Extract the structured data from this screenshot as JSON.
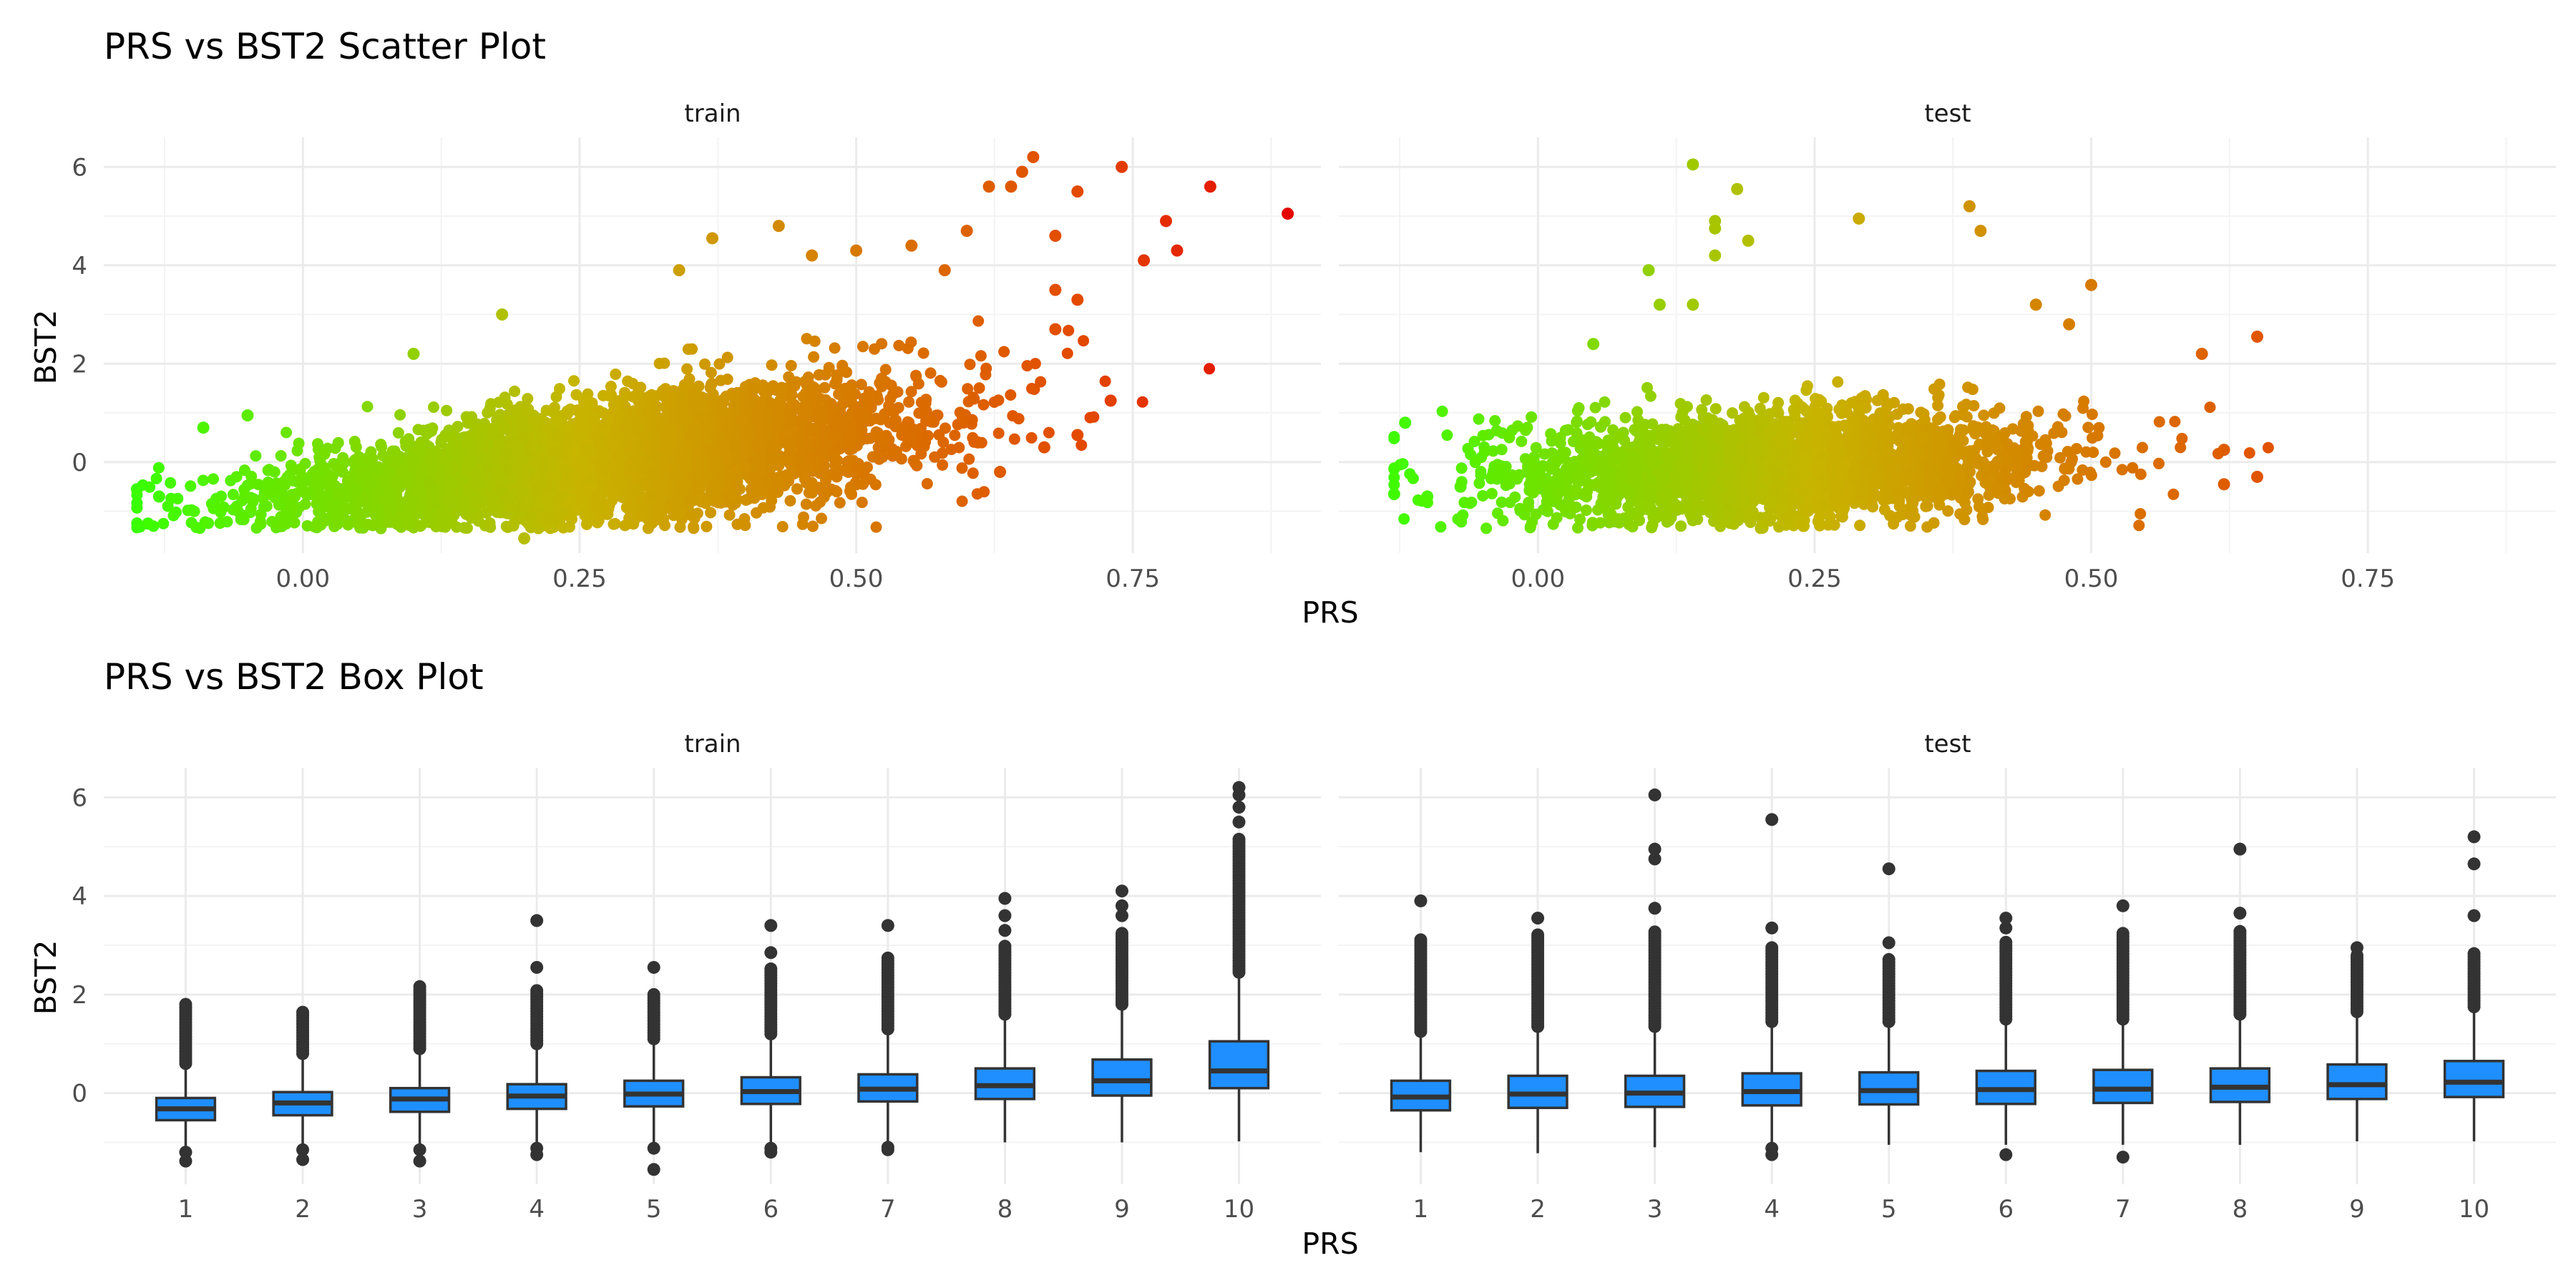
{
  "colors": {
    "low": "#39ff00",
    "mid": "#c8b400",
    "high": "#e34a00",
    "max": "#e50000",
    "box_fill": "#1f8fff",
    "box_line": "#333333",
    "grid": "#ebebeb"
  },
  "chart_data": [
    {
      "type": "scatter",
      "title": "PRS vs BST2 Scatter Plot",
      "xlabel": "PRS",
      "ylabel": "BST2",
      "xlim": [
        -0.18,
        0.92
      ],
      "ylim": [
        -1.85,
        6.6
      ],
      "x_ticks": [
        "0.00",
        "0.25",
        "0.50",
        "0.75"
      ],
      "x_tick_values": [
        0,
        0.25,
        0.5,
        0.75
      ],
      "y_ticks": [
        "0",
        "2",
        "4",
        "6"
      ],
      "y_tick_values": [
        0,
        2,
        4,
        6
      ],
      "color_by": "PRS",
      "grid": true,
      "facets": [
        {
          "name": "train",
          "trend": {
            "intercept": -0.65,
            "slope": 2.6
          },
          "x_range": [
            -0.15,
            0.9
          ],
          "notable_points": [
            {
              "x": 0.89,
              "y": 5.05
            },
            {
              "x": 0.82,
              "y": 5.6
            },
            {
              "x": 0.79,
              "y": 4.3
            },
            {
              "x": 0.78,
              "y": 4.9
            },
            {
              "x": 0.76,
              "y": 4.1
            },
            {
              "x": 0.74,
              "y": 6.0
            },
            {
              "x": 0.7,
              "y": 3.3
            },
            {
              "x": 0.73,
              "y": 1.25
            },
            {
              "x": 0.7,
              "y": 0.55
            },
            {
              "x": 0.66,
              "y": 6.2
            },
            {
              "x": 0.64,
              "y": 5.6
            },
            {
              "x": 0.65,
              "y": 5.9
            },
            {
              "x": 0.68,
              "y": 4.6
            },
            {
              "x": 0.7,
              "y": 5.5
            },
            {
              "x": 0.68,
              "y": 2.7
            },
            {
              "x": 0.68,
              "y": 3.5
            },
            {
              "x": 0.6,
              "y": 4.7
            },
            {
              "x": 0.62,
              "y": 5.6
            },
            {
              "x": 0.58,
              "y": 3.9
            },
            {
              "x": 0.55,
              "y": 4.4
            },
            {
              "x": 0.5,
              "y": 4.3
            },
            {
              "x": 0.46,
              "y": 4.2
            },
            {
              "x": 0.43,
              "y": 4.8
            },
            {
              "x": 0.37,
              "y": 4.55
            },
            {
              "x": 0.34,
              "y": 3.9
            },
            {
              "x": 0.63,
              "y": -0.2
            },
            {
              "x": 0.61,
              "y": 0.4
            },
            {
              "x": 0.67,
              "y": 0.3
            },
            {
              "x": 0.2,
              "y": -1.55
            },
            {
              "x": -0.15,
              "y": -0.55
            },
            {
              "x": -0.14,
              "y": -1.25
            },
            {
              "x": -0.13,
              "y": -0.7
            },
            {
              "x": -0.09,
              "y": 0.7
            },
            {
              "x": -0.05,
              "y": 0.95
            },
            {
              "x": 0.1,
              "y": 2.2
            },
            {
              "x": 0.18,
              "y": 3.0
            }
          ]
        },
        {
          "name": "test",
          "trend": {
            "intercept": -0.55,
            "slope": 2.0
          },
          "x_range": [
            -0.13,
            0.66
          ],
          "notable_points": [
            {
              "x": 0.14,
              "y": 6.05
            },
            {
              "x": 0.18,
              "y": 5.55
            },
            {
              "x": 0.16,
              "y": 4.9
            },
            {
              "x": 0.16,
              "y": 4.75
            },
            {
              "x": 0.16,
              "y": 4.2
            },
            {
              "x": 0.39,
              "y": 5.2
            },
            {
              "x": 0.4,
              "y": 4.7
            },
            {
              "x": 0.29,
              "y": 4.95
            },
            {
              "x": 0.19,
              "y": 4.5
            },
            {
              "x": 0.1,
              "y": 3.9
            },
            {
              "x": 0.05,
              "y": 2.4
            },
            {
              "x": 0.11,
              "y": 3.2
            },
            {
              "x": 0.14,
              "y": 3.2
            },
            {
              "x": 0.5,
              "y": 3.6
            },
            {
              "x": 0.45,
              "y": 3.2
            },
            {
              "x": 0.48,
              "y": 2.8
            },
            {
              "x": 0.65,
              "y": 2.55
            },
            {
              "x": 0.6,
              "y": 2.2
            },
            {
              "x": 0.65,
              "y": -0.3
            },
            {
              "x": 0.62,
              "y": -0.45
            },
            {
              "x": 0.62,
              "y": 0.25
            },
            {
              "x": -0.12,
              "y": 0.8
            },
            {
              "x": -0.13,
              "y": -0.65
            },
            {
              "x": -0.1,
              "y": -0.7
            },
            {
              "x": -0.07,
              "y": -0.5
            },
            {
              "x": 0.24,
              "y": -1.3
            },
            {
              "x": 0.17,
              "y": -1.2
            }
          ]
        }
      ]
    },
    {
      "type": "box",
      "title": "PRS vs BST2 Box Plot",
      "xlabel": "PRS",
      "ylabel": "BST2",
      "categories": [
        "1",
        "2",
        "3",
        "4",
        "5",
        "6",
        "7",
        "8",
        "9",
        "10"
      ],
      "ylim": [
        -1.85,
        6.6
      ],
      "y_ticks": [
        "0",
        "2",
        "4",
        "6"
      ],
      "y_tick_values": [
        0,
        2,
        4,
        6
      ],
      "grid": true,
      "facets": [
        {
          "name": "train",
          "boxes": [
            {
              "q1": -0.55,
              "median": -0.32,
              "q3": -0.1,
              "whisker_low": -1.08,
              "whisker_high": 0.55,
              "outliers_high": [
                0.6,
                1.85
              ],
              "outliers_low": [
                -1.2,
                -1.38
              ]
            },
            {
              "q1": -0.45,
              "median": -0.2,
              "q3": 0.02,
              "whisker_low": -1.08,
              "whisker_high": 0.72,
              "outliers_high": [
                0.8,
                1.65
              ],
              "outliers_low": [
                -1.15,
                -1.35
              ]
            },
            {
              "q1": -0.38,
              "median": -0.12,
              "q3": 0.1,
              "whisker_low": -1.1,
              "whisker_high": 0.82,
              "outliers_high": [
                0.9,
                2.2
              ],
              "outliers_low": [
                -1.15,
                -1.38
              ]
            },
            {
              "q1": -0.32,
              "median": -0.06,
              "q3": 0.18,
              "whisker_low": -1.08,
              "whisker_high": 0.92,
              "outliers_high": [
                1.0,
                2.1
              ],
              "extra_outliers": [
                2.55,
                3.5
              ],
              "outliers_low": [
                -1.12,
                -1.25
              ]
            },
            {
              "q1": -0.27,
              "median": -0.02,
              "q3": 0.25,
              "whisker_low": -1.05,
              "whisker_high": 1.0,
              "outliers_high": [
                1.1,
                2.05
              ],
              "extra_outliers": [
                2.55
              ],
              "outliers_low": [
                -1.12,
                -1.55
              ]
            },
            {
              "q1": -0.22,
              "median": 0.03,
              "q3": 0.32,
              "whisker_low": -1.05,
              "whisker_high": 1.12,
              "outliers_high": [
                1.2,
                2.55
              ],
              "extra_outliers": [
                2.85,
                3.4
              ],
              "outliers_low": [
                -1.12,
                -1.2
              ]
            },
            {
              "q1": -0.17,
              "median": 0.08,
              "q3": 0.38,
              "whisker_low": -1.05,
              "whisker_high": 1.2,
              "outliers_high": [
                1.3,
                2.75
              ],
              "extra_outliers": [
                3.4
              ],
              "outliers_low": [
                -1.1,
                -1.15
              ]
            },
            {
              "q1": -0.12,
              "median": 0.15,
              "q3": 0.5,
              "whisker_low": -1.0,
              "whisker_high": 1.5,
              "outliers_high": [
                1.6,
                3.0
              ],
              "extra_outliers": [
                3.3,
                3.6,
                3.95
              ],
              "outliers_low": []
            },
            {
              "q1": -0.05,
              "median": 0.25,
              "q3": 0.68,
              "whisker_low": -1.0,
              "whisker_high": 1.75,
              "outliers_high": [
                1.8,
                3.3
              ],
              "extra_outliers": [
                3.6,
                3.8,
                4.1
              ],
              "outliers_low": []
            },
            {
              "q1": 0.1,
              "median": 0.45,
              "q3": 1.05,
              "whisker_low": -0.98,
              "whisker_high": 2.4,
              "outliers_high": [
                2.45,
                5.2
              ],
              "extra_outliers": [
                5.5,
                5.8,
                6.05,
                6.2
              ],
              "outliers_low": []
            }
          ]
        },
        {
          "name": "test",
          "boxes": [
            {
              "q1": -0.35,
              "median": -0.08,
              "q3": 0.25,
              "whisker_low": -1.2,
              "whisker_high": 1.2,
              "outliers_high": [
                1.25,
                3.15
              ],
              "extra_outliers": [
                3.9
              ],
              "outliers_low": []
            },
            {
              "q1": -0.3,
              "median": -0.02,
              "q3": 0.35,
              "whisker_low": -1.22,
              "whisker_high": 1.3,
              "outliers_high": [
                1.35,
                3.25
              ],
              "extra_outliers": [
                3.55
              ],
              "outliers_low": []
            },
            {
              "q1": -0.28,
              "median": 0.0,
              "q3": 0.35,
              "whisker_low": -1.1,
              "whisker_high": 1.3,
              "outliers_high": [
                1.35,
                3.3
              ],
              "extra_outliers": [
                3.75,
                4.75,
                4.95,
                6.05
              ],
              "outliers_low": []
            },
            {
              "q1": -0.25,
              "median": 0.03,
              "q3": 0.4,
              "whisker_low": -1.05,
              "whisker_high": 1.4,
              "outliers_high": [
                1.45,
                3.0
              ],
              "extra_outliers": [
                3.35,
                5.55
              ],
              "outliers_low": [
                -1.12,
                -1.25
              ]
            },
            {
              "q1": -0.23,
              "median": 0.05,
              "q3": 0.42,
              "whisker_low": -1.05,
              "whisker_high": 1.4,
              "outliers_high": [
                1.45,
                2.75
              ],
              "extra_outliers": [
                3.05,
                4.55
              ],
              "outliers_low": []
            },
            {
              "q1": -0.22,
              "median": 0.07,
              "q3": 0.45,
              "whisker_low": -1.05,
              "whisker_high": 1.45,
              "outliers_high": [
                1.5,
                3.1
              ],
              "extra_outliers": [
                3.35,
                3.55
              ],
              "outliers_low": [
                -1.25
              ]
            },
            {
              "q1": -0.2,
              "median": 0.08,
              "q3": 0.47,
              "whisker_low": -1.05,
              "whisker_high": 1.45,
              "outliers_high": [
                1.5,
                3.3
              ],
              "extra_outliers": [
                3.8
              ],
              "outliers_low": [
                -1.3
              ]
            },
            {
              "q1": -0.18,
              "median": 0.12,
              "q3": 0.5,
              "whisker_low": -1.05,
              "whisker_high": 1.55,
              "outliers_high": [
                1.6,
                3.3
              ],
              "extra_outliers": [
                3.65,
                4.95
              ],
              "outliers_low": []
            },
            {
              "q1": -0.12,
              "median": 0.17,
              "q3": 0.58,
              "whisker_low": -0.98,
              "whisker_high": 1.6,
              "outliers_high": [
                1.65,
                2.85
              ],
              "extra_outliers": [
                2.95
              ],
              "outliers_low": []
            },
            {
              "q1": -0.08,
              "median": 0.22,
              "q3": 0.65,
              "whisker_low": -0.98,
              "whisker_high": 1.7,
              "outliers_high": [
                1.75,
                2.85
              ],
              "extra_outliers": [
                3.6,
                4.65,
                5.2
              ],
              "outliers_low": []
            }
          ]
        }
      ]
    }
  ]
}
